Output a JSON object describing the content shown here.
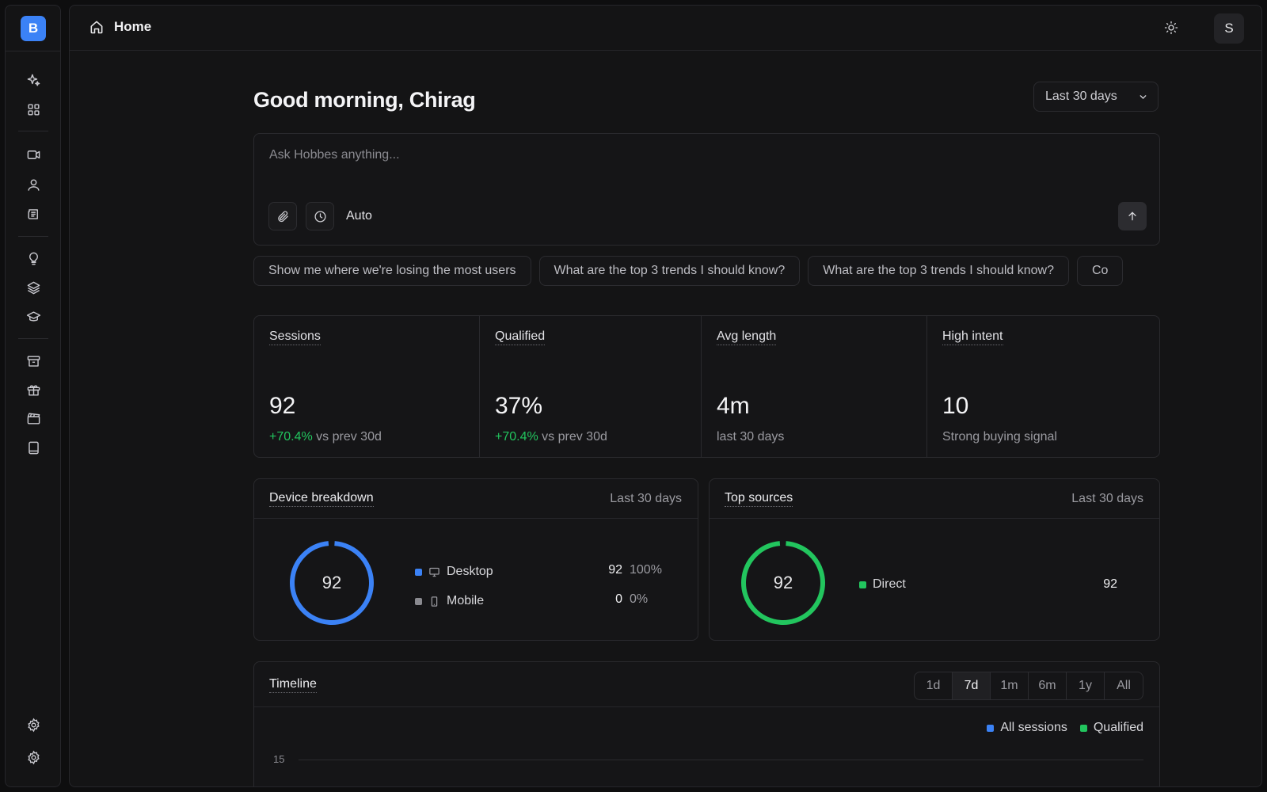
{
  "app": {
    "logo_letter": "B"
  },
  "header": {
    "title": "Home",
    "avatar_initial": "S"
  },
  "greeting": "Good morning, Chirag",
  "range_selector": {
    "value": "Last 30 days"
  },
  "ask": {
    "placeholder": "Ask Hobbes anything...",
    "mode": "Auto"
  },
  "suggestions": [
    "Show me where we're losing the most users",
    "What are the top 3 trends I should know?",
    "What are the top 3 trends I should know?",
    "Co"
  ],
  "stats": [
    {
      "label": "Sessions",
      "value": "92",
      "delta": "+70.4%",
      "sub": " vs prev 30d"
    },
    {
      "label": "Qualified",
      "value": "37%",
      "delta": "+70.4%",
      "sub": " vs prev 30d"
    },
    {
      "label": "Avg length",
      "value": "4m",
      "delta": "",
      "sub": "last 30 days"
    },
    {
      "label": "High intent",
      "value": "10",
      "delta": "",
      "sub": "Strong buying signal"
    }
  ],
  "device_breakdown": {
    "title": "Device breakdown",
    "range": "Last 30 days",
    "total": "92",
    "accent": "#3b82f6",
    "rows": [
      {
        "label": "Desktop",
        "icon": "desktop-icon",
        "count": "92",
        "pct": "100%",
        "color": "#3b82f6"
      },
      {
        "label": "Mobile",
        "icon": "mobile-icon",
        "count": "0",
        "pct": "0%",
        "color": "#8a8a90"
      }
    ]
  },
  "top_sources": {
    "title": "Top sources",
    "range": "Last 30 days",
    "total": "92",
    "accent": "#22c55e",
    "rows": [
      {
        "label": "Direct",
        "count": "92",
        "color": "#22c55e"
      }
    ]
  },
  "timeline": {
    "title": "Timeline",
    "ranges": [
      "1d",
      "7d",
      "1m",
      "6m",
      "1y",
      "All"
    ],
    "active_range": "7d",
    "legend": [
      {
        "label": "All sessions",
        "color": "#3b82f6"
      },
      {
        "label": "Qualified",
        "color": "#22c55e"
      }
    ],
    "y_tick_top": "15"
  }
}
